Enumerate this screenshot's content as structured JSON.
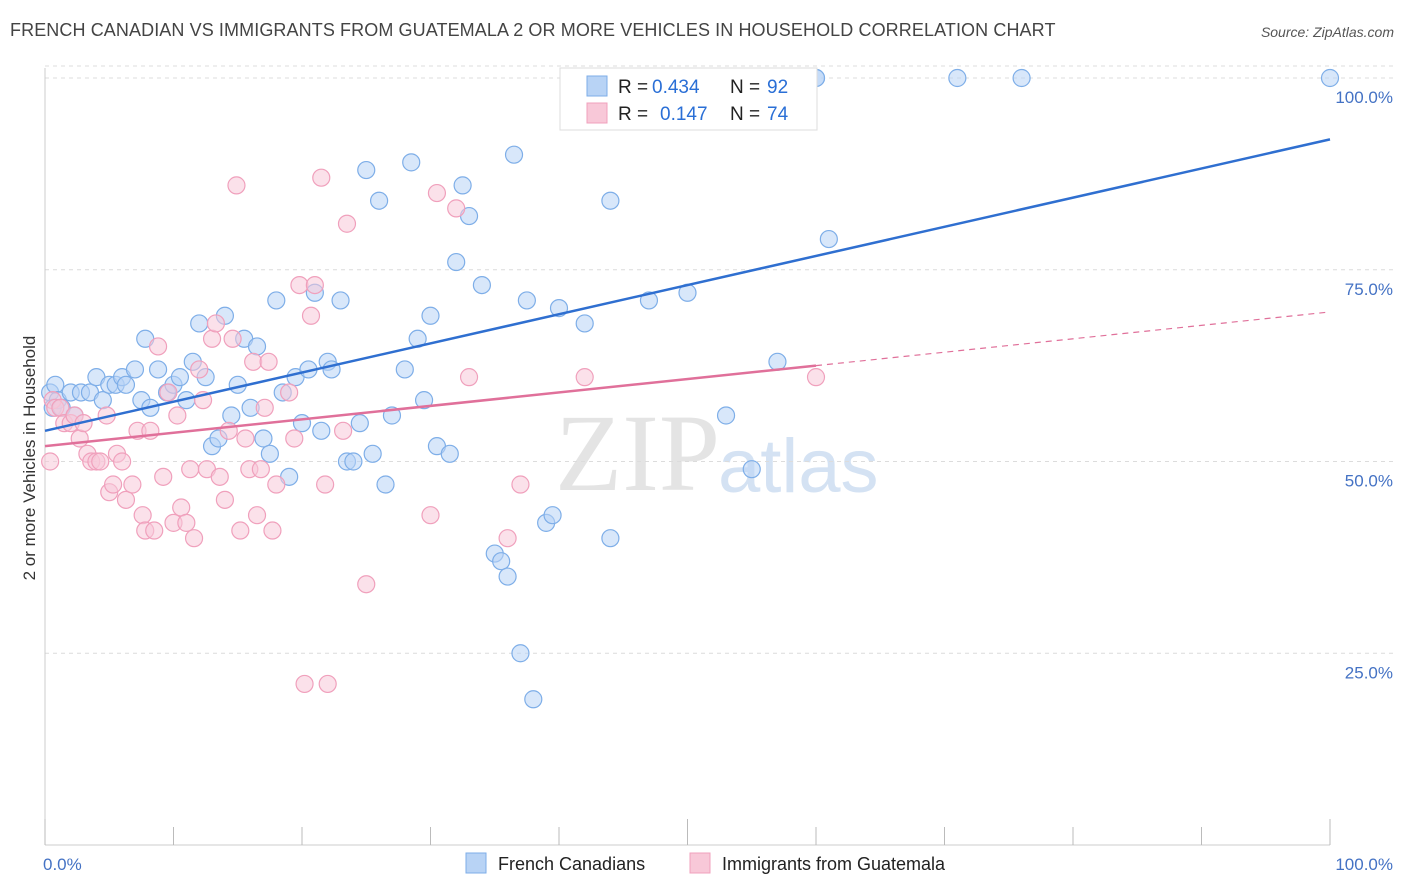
{
  "header": {
    "title": "FRENCH CANADIAN VS IMMIGRANTS FROM GUATEMALA 2 OR MORE VEHICLES IN HOUSEHOLD CORRELATION CHART",
    "source": "Source: ZipAtlas.com"
  },
  "watermark": {
    "zip": "ZIP",
    "atlas": "atlas"
  },
  "chart_data": {
    "type": "scatter",
    "xlabel": "",
    "ylabel": "2 or more Vehicles in Household",
    "xlim": [
      0,
      100
    ],
    "ylim": [
      0,
      100
    ],
    "x_tick_labels": [
      "0.0%",
      "100.0%"
    ],
    "y_ticks": [
      {
        "value": 25,
        "label": "25.0%"
      },
      {
        "value": 50,
        "label": "50.0%"
      },
      {
        "value": 75,
        "label": "75.0%"
      },
      {
        "value": 100,
        "label": "100.0%"
      }
    ],
    "grid": true,
    "legend_placement": "top-center",
    "legend": [
      {
        "r_label": "R =",
        "r_value": "0.434",
        "n_label": "N =",
        "n_value": "92"
      },
      {
        "r_label": "R =",
        "r_value": "0.147",
        "n_label": "N =",
        "n_value": "74"
      }
    ],
    "series": [
      {
        "name": "French Canadians",
        "color": "#7eaee8",
        "fill": "#b8d3f5",
        "trend_color": "#2f6fd0",
        "trend": {
          "x0": 0,
          "y0": 54,
          "x1": 100,
          "y1": 92
        },
        "points": [
          [
            0.4,
            59
          ],
          [
            0.6,
            57
          ],
          [
            0.8,
            60
          ],
          [
            1,
            58
          ],
          [
            1.3,
            57
          ],
          [
            2,
            59
          ],
          [
            2.3,
            56
          ],
          [
            2.8,
            59
          ],
          [
            3.5,
            59
          ],
          [
            4,
            61
          ],
          [
            4.5,
            58
          ],
          [
            5,
            60
          ],
          [
            5.5,
            60
          ],
          [
            6,
            61
          ],
          [
            6.3,
            60
          ],
          [
            7,
            62
          ],
          [
            7.5,
            58
          ],
          [
            7.8,
            66
          ],
          [
            8.2,
            57
          ],
          [
            8.8,
            62
          ],
          [
            9.5,
            59
          ],
          [
            10,
            60
          ],
          [
            10.5,
            61
          ],
          [
            11,
            58
          ],
          [
            11.5,
            63
          ],
          [
            12,
            68
          ],
          [
            12.5,
            61
          ],
          [
            13,
            52
          ],
          [
            13.5,
            53
          ],
          [
            14,
            69
          ],
          [
            14.5,
            56
          ],
          [
            15,
            60
          ],
          [
            15.5,
            66
          ],
          [
            16,
            57
          ],
          [
            16.5,
            65
          ],
          [
            17,
            53
          ],
          [
            17.5,
            51
          ],
          [
            18,
            71
          ],
          [
            18.5,
            59
          ],
          [
            19,
            48
          ],
          [
            19.5,
            61
          ],
          [
            20,
            55
          ],
          [
            20.5,
            62
          ],
          [
            21,
            72
          ],
          [
            21.5,
            54
          ],
          [
            22,
            63
          ],
          [
            22.3,
            62
          ],
          [
            23,
            71
          ],
          [
            23.5,
            50
          ],
          [
            24,
            50
          ],
          [
            24.5,
            55
          ],
          [
            25,
            88
          ],
          [
            25.5,
            51
          ],
          [
            26,
            84
          ],
          [
            26.5,
            47
          ],
          [
            27,
            56
          ],
          [
            28,
            62
          ],
          [
            28.5,
            89
          ],
          [
            29,
            66
          ],
          [
            29.5,
            58
          ],
          [
            30,
            69
          ],
          [
            30.5,
            52
          ],
          [
            31.5,
            51
          ],
          [
            32,
            76
          ],
          [
            32.5,
            86
          ],
          [
            33,
            82
          ],
          [
            34,
            73
          ],
          [
            35,
            38
          ],
          [
            35.5,
            37
          ],
          [
            36,
            35
          ],
          [
            36.5,
            90
          ],
          [
            37,
            25
          ],
          [
            37.5,
            71
          ],
          [
            38,
            19
          ],
          [
            39,
            42
          ],
          [
            39.5,
            43
          ],
          [
            40,
            70
          ],
          [
            42,
            68
          ],
          [
            44,
            84
          ],
          [
            44,
            40
          ],
          [
            47,
            71
          ],
          [
            47,
            100
          ],
          [
            50,
            72
          ],
          [
            53,
            56
          ],
          [
            55,
            49
          ],
          [
            57,
            63
          ],
          [
            60,
            100
          ],
          [
            60,
            100
          ],
          [
            61,
            79
          ],
          [
            71,
            100
          ],
          [
            76,
            100
          ],
          [
            100,
            100
          ]
        ]
      },
      {
        "name": "Immigrants from Guatemala",
        "color": "#f0a0bc",
        "fill": "#f8c8d8",
        "trend_color": "#e0709a",
        "trend": {
          "x0": 0,
          "y0": 52,
          "x1": 60,
          "y1": 62.5
        },
        "trend_ext": {
          "x0": 60,
          "y0": 62.5,
          "x1": 100,
          "y1": 69.5
        },
        "points": [
          [
            0.4,
            50
          ],
          [
            0.6,
            58
          ],
          [
            0.8,
            57
          ],
          [
            1.2,
            57
          ],
          [
            1.5,
            55
          ],
          [
            2,
            55
          ],
          [
            2.3,
            56
          ],
          [
            2.7,
            53
          ],
          [
            3,
            55
          ],
          [
            3.3,
            51
          ],
          [
            3.6,
            50
          ],
          [
            4,
            50
          ],
          [
            4.3,
            50
          ],
          [
            4.8,
            56
          ],
          [
            5,
            46
          ],
          [
            5.3,
            47
          ],
          [
            5.6,
            51
          ],
          [
            6,
            50
          ],
          [
            6.3,
            45
          ],
          [
            6.8,
            47
          ],
          [
            7.2,
            54
          ],
          [
            7.6,
            43
          ],
          [
            7.8,
            41
          ],
          [
            8.2,
            54
          ],
          [
            8.5,
            41
          ],
          [
            8.8,
            65
          ],
          [
            9.2,
            48
          ],
          [
            9.6,
            59
          ],
          [
            10,
            42
          ],
          [
            10.3,
            56
          ],
          [
            10.6,
            44
          ],
          [
            11,
            42
          ],
          [
            11.3,
            49
          ],
          [
            11.6,
            40
          ],
          [
            12,
            62
          ],
          [
            12.3,
            58
          ],
          [
            12.6,
            49
          ],
          [
            13,
            66
          ],
          [
            13.3,
            68
          ],
          [
            13.6,
            48
          ],
          [
            14,
            45
          ],
          [
            14.3,
            54
          ],
          [
            14.6,
            66
          ],
          [
            14.9,
            86
          ],
          [
            15.2,
            41
          ],
          [
            15.6,
            53
          ],
          [
            15.9,
            49
          ],
          [
            16.2,
            63
          ],
          [
            16.5,
            43
          ],
          [
            16.8,
            49
          ],
          [
            17.1,
            57
          ],
          [
            17.4,
            63
          ],
          [
            17.7,
            41
          ],
          [
            18,
            47
          ],
          [
            19,
            59
          ],
          [
            19.4,
            53
          ],
          [
            19.8,
            73
          ],
          [
            20.2,
            21
          ],
          [
            20.7,
            69
          ],
          [
            21,
            73
          ],
          [
            21.5,
            87
          ],
          [
            21.8,
            47
          ],
          [
            22,
            21
          ],
          [
            23.2,
            54
          ],
          [
            23.5,
            81
          ],
          [
            25,
            34
          ],
          [
            30,
            43
          ],
          [
            30.5,
            85
          ],
          [
            32,
            83
          ],
          [
            33,
            61
          ],
          [
            36,
            40
          ],
          [
            37,
            47
          ],
          [
            42,
            61
          ],
          [
            60,
            61
          ]
        ]
      }
    ]
  }
}
